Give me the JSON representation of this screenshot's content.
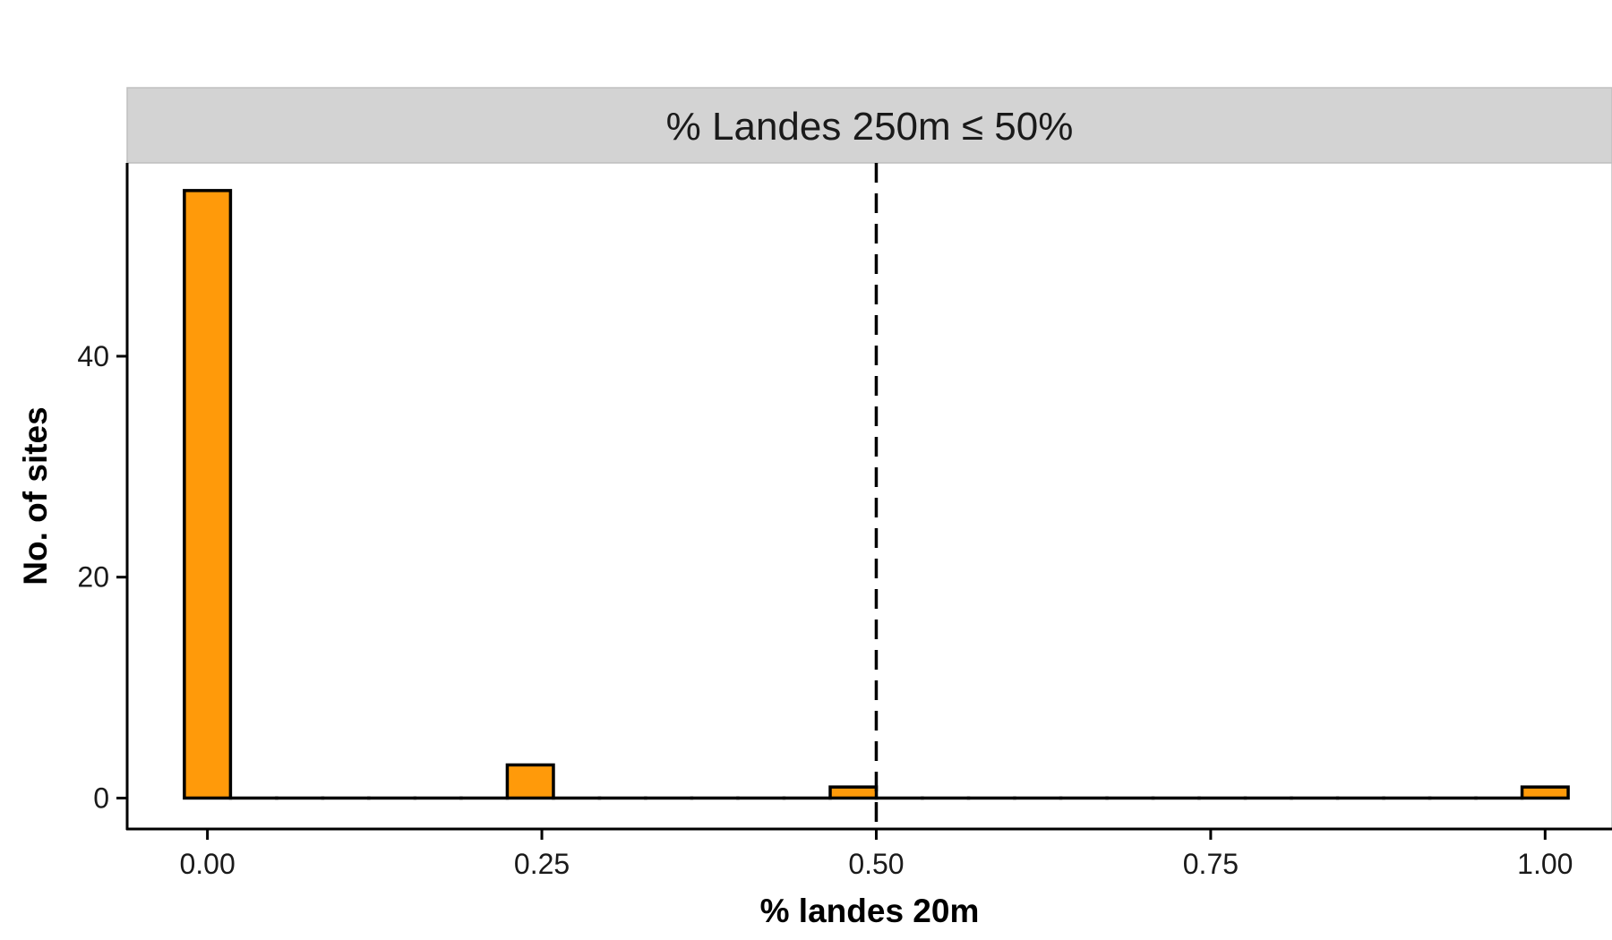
{
  "chart_data": {
    "type": "bar",
    "title": "% Landes 250m ≤ 50%",
    "xlabel": "% landes 20m",
    "ylabel": "No. of sites",
    "xlim": [
      -0.06,
      1.05
    ],
    "ylim": [
      -2.8,
      57.5
    ],
    "x_ticks": [
      "0.00",
      "0.25",
      "0.50",
      "0.75",
      "1.00"
    ],
    "x_tick_values": [
      0,
      0.25,
      0.5,
      0.75,
      1.0
    ],
    "y_ticks": [
      "0",
      "20",
      "40"
    ],
    "y_tick_values": [
      0,
      20,
      40
    ],
    "bin_width": 0.0345,
    "bins": [
      {
        "x": 0.0,
        "count": 55
      },
      {
        "x": 0.0345,
        "count": 0
      },
      {
        "x": 0.069,
        "count": 0
      },
      {
        "x": 0.1034,
        "count": 0
      },
      {
        "x": 0.1379,
        "count": 0
      },
      {
        "x": 0.1724,
        "count": 0
      },
      {
        "x": 0.2069,
        "count": 0
      },
      {
        "x": 0.2414,
        "count": 3
      },
      {
        "x": 0.2759,
        "count": 0
      },
      {
        "x": 0.3103,
        "count": 0
      },
      {
        "x": 0.3448,
        "count": 0
      },
      {
        "x": 0.3793,
        "count": 0
      },
      {
        "x": 0.4138,
        "count": 0
      },
      {
        "x": 0.4483,
        "count": 0
      },
      {
        "x": 0.4828,
        "count": 1
      },
      {
        "x": 0.5172,
        "count": 0
      },
      {
        "x": 0.5517,
        "count": 0
      },
      {
        "x": 0.5862,
        "count": 0
      },
      {
        "x": 0.6207,
        "count": 0
      },
      {
        "x": 0.6552,
        "count": 0
      },
      {
        "x": 0.6897,
        "count": 0
      },
      {
        "x": 0.7241,
        "count": 0
      },
      {
        "x": 0.7586,
        "count": 0
      },
      {
        "x": 0.7931,
        "count": 0
      },
      {
        "x": 0.8276,
        "count": 0
      },
      {
        "x": 0.8621,
        "count": 0
      },
      {
        "x": 0.8966,
        "count": 0
      },
      {
        "x": 0.931,
        "count": 0
      },
      {
        "x": 0.9655,
        "count": 0
      },
      {
        "x": 1.0,
        "count": 1
      }
    ],
    "reference_line_x": 0.5,
    "colors": {
      "bar_fill": "#ff9a0a",
      "bar_stroke": "#000000",
      "strip_fill": "#d3d3d3",
      "reference_line": "#000000"
    },
    "grid": false,
    "legend": "none"
  }
}
